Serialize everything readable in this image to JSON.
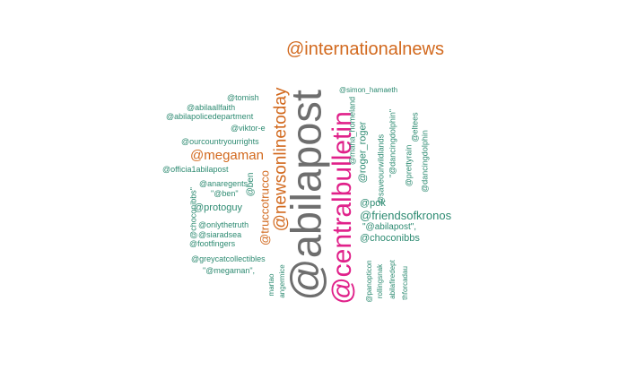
{
  "cloud": {
    "words": [
      {
        "text": "@abilapost",
        "color": "#6e6e6e"
      },
      {
        "text": "@centralbulletin",
        "color": "#e0218a"
      },
      {
        "text": "@internationalnews",
        "color": "#d2691e"
      },
      {
        "text": "@newsonlinetoday",
        "color": "#d2691e"
      },
      {
        "text": "@megaman",
        "color": "#d2691e"
      },
      {
        "text": "@truccotrucco",
        "color": "#d2691e"
      },
      {
        "text": "@friendsofkronos",
        "color": "#2e8b72"
      },
      {
        "text": "@choconibbs",
        "color": "#2e8b72"
      },
      {
        "text": "@pok",
        "color": "#2e8b72"
      },
      {
        "text": "\"@abilapost\",",
        "color": "#2e8b72"
      },
      {
        "text": "@protoguy",
        "color": "#2e8b72"
      },
      {
        "text": "@roger_roger",
        "color": "#2e8b72"
      },
      {
        "text": "@simon_hamaeth",
        "color": "#2e8b72"
      },
      {
        "text": "@tomish",
        "color": "#2e8b72"
      },
      {
        "text": "@abilaallfaith",
        "color": "#2e8b72"
      },
      {
        "text": "@abilapolicedepartment",
        "color": "#2e8b72"
      },
      {
        "text": "@viktor-e",
        "color": "#2e8b72"
      },
      {
        "text": "@ourcountryourrights",
        "color": "#2e8b72"
      },
      {
        "text": "@officia1abilapost",
        "color": "#2e8b72"
      },
      {
        "text": "@anaregents",
        "color": "#2e8b72"
      },
      {
        "text": "\"@ben\"",
        "color": "#2e8b72"
      },
      {
        "text": "@ben",
        "color": "#2e8b72"
      },
      {
        "text": "@onlythetruth",
        "color": "#2e8b72"
      },
      {
        "text": "@siaradsea",
        "color": "#2e8b72"
      },
      {
        "text": "@footfingers",
        "color": "#2e8b72"
      },
      {
        "text": "@greycatcollectibles",
        "color": "#2e8b72"
      },
      {
        "text": "\"@megaman\",",
        "color": "#2e8b72"
      },
      {
        "text": "@choconibbs\"",
        "color": "#2e8b72"
      },
      {
        "text": "@maha_homeland",
        "color": "#2e8b72"
      },
      {
        "text": "\"@dancingdolphin\"",
        "color": "#2e8b72"
      },
      {
        "text": "@saveourwildlands",
        "color": "#2e8b72"
      },
      {
        "text": "@prettyrain",
        "color": "#2e8b72"
      },
      {
        "text": "@dancingdolphin",
        "color": "#2e8b72"
      },
      {
        "text": "@eltees",
        "color": "#2e8b72"
      },
      {
        "text": "martao",
        "color": "#2e8b72"
      },
      {
        "text": "angermice",
        "color": "#2e8b72"
      },
      {
        "text": "@panopticon",
        "color": "#2e8b72"
      },
      {
        "text": "rollingsnak",
        "color": "#2e8b72"
      },
      {
        "text": "abilafiredept",
        "color": "#2e8b72"
      },
      {
        "text": "thforcadau",
        "color": "#2e8b72"
      }
    ]
  }
}
